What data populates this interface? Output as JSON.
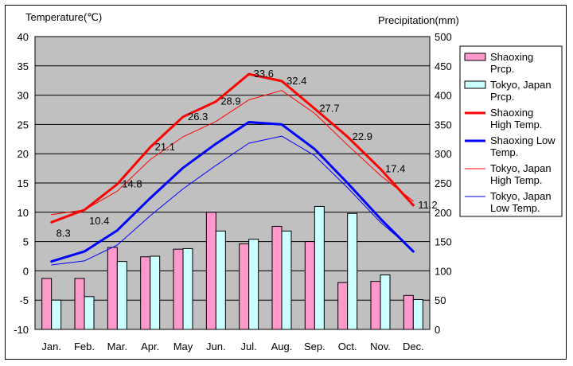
{
  "chart_data": {
    "type": "bar+line",
    "left_axis_title": "Temperature(℃)",
    "right_axis_title": "Precipitation(mm)",
    "ylim_left": [
      -10,
      40
    ],
    "ylim_right": [
      0,
      500
    ],
    "left_ticks": [
      "40",
      "35",
      "30",
      "25",
      "20",
      "15",
      "10",
      "5",
      "0",
      "-5",
      "-10"
    ],
    "right_ticks": [
      "500",
      "450",
      "400",
      "350",
      "300",
      "250",
      "200",
      "150",
      "100",
      "50",
      "0"
    ],
    "categories": [
      "Jan.",
      "Feb.",
      "Mar.",
      "Apr.",
      "May",
      "Jun.",
      "Jul.",
      "Aug.",
      "Sep.",
      "Oct.",
      "Nov.",
      "Dec."
    ],
    "bar_series": [
      {
        "name": "Shaoxing Prcp.",
        "color": "#ff99cc",
        "values": [
          87,
          87,
          140,
          124,
          137,
          200,
          146,
          176,
          150,
          80,
          82,
          58
        ]
      },
      {
        "name": "Tokyo, Japan Prcp.",
        "color": "#ccffff",
        "values": [
          50,
          56,
          116,
          125,
          138,
          168,
          154,
          168,
          210,
          198,
          93,
          51
        ]
      }
    ],
    "line_series": [
      {
        "name": "Shaoxing High Temp.",
        "color": "#ff0000",
        "width": 3,
        "values": [
          8.3,
          10.4,
          14.8,
          21.1,
          26.3,
          28.9,
          33.6,
          32.4,
          27.7,
          22.9,
          17.4,
          11.2
        ]
      },
      {
        "name": "Shaoxing Low Temp.",
        "color": "#0000ff",
        "width": 3,
        "values": [
          1.6,
          3.3,
          6.9,
          12.4,
          17.6,
          21.7,
          25.4,
          25.0,
          20.8,
          15.0,
          8.9,
          3.3
        ]
      },
      {
        "name": "Tokyo, Japan High Temp.",
        "color": "#ff0000",
        "width": 1,
        "values": [
          9.6,
          10.4,
          13.6,
          19.0,
          22.9,
          25.5,
          29.2,
          30.8,
          26.9,
          21.5,
          16.3,
          11.9
        ]
      },
      {
        "name": "Tokyo, Japan Low Temp.",
        "color": "#0000ff",
        "width": 1,
        "values": [
          1.0,
          1.7,
          4.4,
          9.4,
          14.0,
          18.0,
          21.8,
          23.0,
          19.7,
          14.2,
          8.3,
          3.5
        ]
      }
    ],
    "data_labels": [
      "8.3",
      "10.4",
      "14.8",
      "21.1",
      "26.3",
      "28.9",
      "33.6",
      "32.4",
      "27.7",
      "22.9",
      "17.4",
      "11.2"
    ],
    "legend": [
      {
        "label": "Shaoxing Prcp.",
        "kind": "bar",
        "color": "#ff99cc"
      },
      {
        "label": "Tokyo, Japan Prcp.",
        "kind": "bar",
        "color": "#ccffff"
      },
      {
        "label": "Shaoxing High Temp.",
        "kind": "line",
        "color": "#ff0000",
        "width": 3
      },
      {
        "label": "Shaoxing Low Temp.",
        "kind": "line",
        "color": "#0000ff",
        "width": 3
      },
      {
        "label": "Tokyo, Japan High Temp.",
        "kind": "line",
        "color": "#ff0000",
        "width": 1
      },
      {
        "label": "Tokyo, Japan Low Temp.",
        "kind": "line",
        "color": "#0000ff",
        "width": 1
      }
    ],
    "legend_position": "right",
    "plot_background": "#c0c0c0",
    "grid": true
  }
}
